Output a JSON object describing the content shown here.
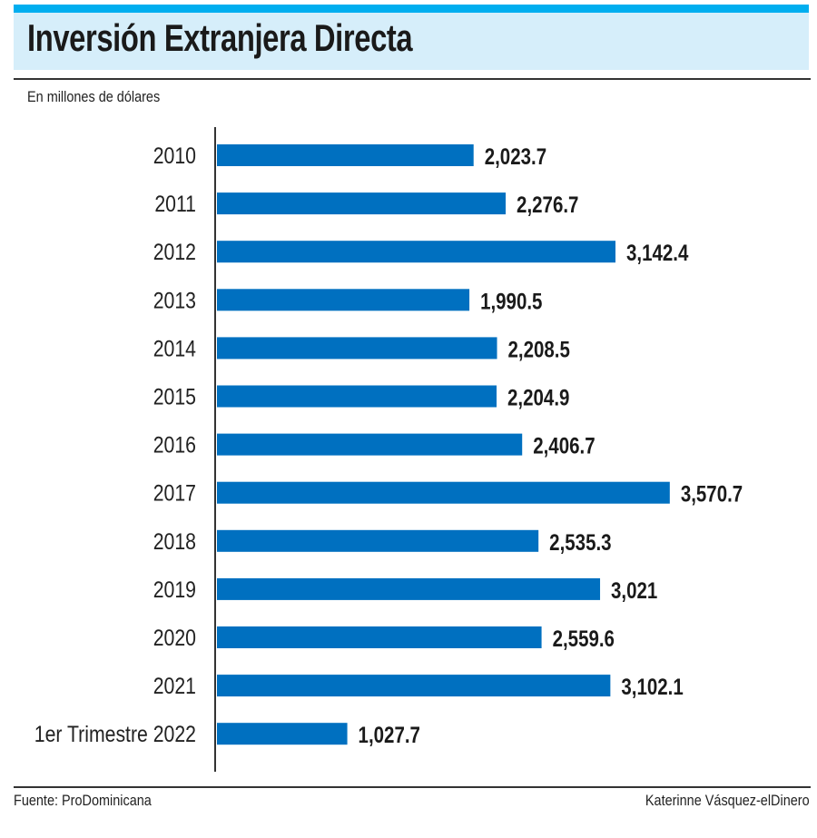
{
  "chart_data": {
    "type": "bar",
    "orientation": "horizontal",
    "title": "Inversión Extranjera Directa",
    "subtitle": "En millones de dólares",
    "categories": [
      "2010",
      "2011",
      "2012",
      "2013",
      "2014",
      "2015",
      "2016",
      "2017",
      "2018",
      "2019",
      "2020",
      "2021",
      "1er Trimestre 2022"
    ],
    "values": [
      2023.7,
      2276.7,
      3142.4,
      1990.5,
      2208.5,
      2204.9,
      2406.7,
      3570.7,
      2535.3,
      3021,
      2559.6,
      3102.1,
      1027.7
    ],
    "value_labels": [
      "2,023.7",
      "2,276.7",
      "3,142.4",
      "1,990.5",
      "2,208.5",
      "2,204.9",
      "2,406.7",
      "3,570.7",
      "2,535.3",
      "3,021",
      "2,559.6",
      "3,102.1",
      "1,027.7"
    ],
    "bar_color": "#0070c0",
    "xlim": [
      0,
      4500
    ]
  },
  "footer": {
    "source": "Fuente: ProDominicana",
    "credit": "Katerinne Vásquez-elDinero"
  }
}
